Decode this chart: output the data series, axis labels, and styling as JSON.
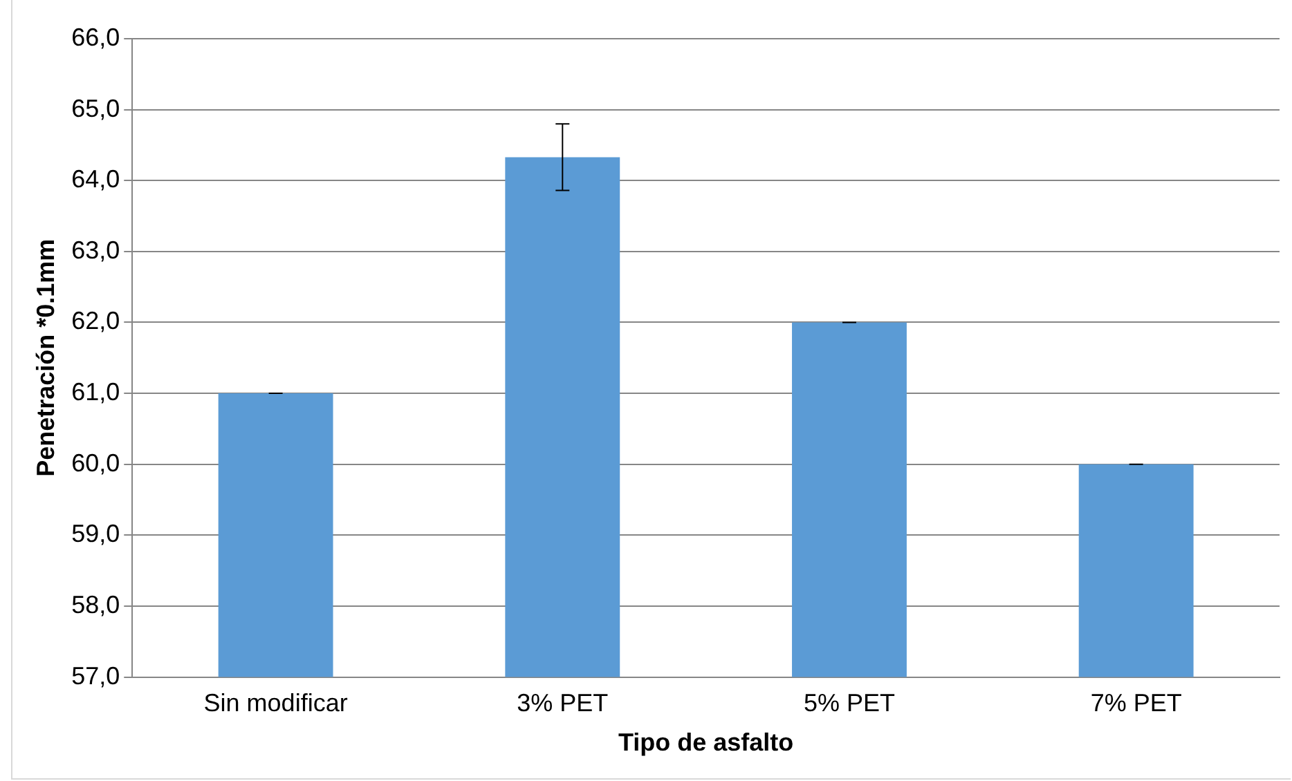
{
  "chart_data": {
    "type": "bar",
    "xlabel": "Tipo de asfalto",
    "ylabel": "Penetración *0.1mm",
    "categories": [
      "Sin modificar",
      "3% PET",
      "5% PET",
      "7% PET"
    ],
    "values": [
      61.0,
      64.33,
      62.0,
      60.0
    ],
    "errors": [
      0,
      0.47,
      0,
      0
    ],
    "color": "#5b9bd5",
    "ylim": [
      57,
      66
    ],
    "yticks": [
      {
        "value": 57,
        "label": "57,0"
      },
      {
        "value": 58,
        "label": "58,0"
      },
      {
        "value": 59,
        "label": "59,0"
      },
      {
        "value": 60,
        "label": "60,0"
      },
      {
        "value": 61,
        "label": "61,0"
      },
      {
        "value": 62,
        "label": "62,0"
      },
      {
        "value": 63,
        "label": "63,0"
      },
      {
        "value": 64,
        "label": "64,0"
      },
      {
        "value": 65,
        "label": "65,0"
      },
      {
        "value": 66,
        "label": "66,0"
      }
    ],
    "grid": "y",
    "legend": false
  }
}
